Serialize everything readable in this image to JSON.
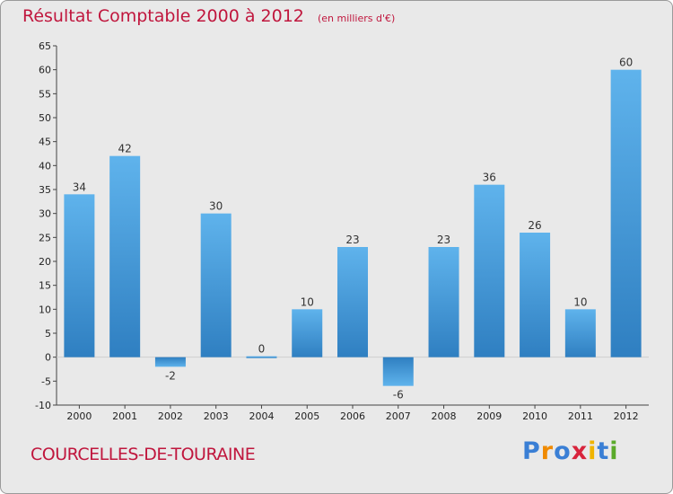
{
  "header": {
    "title": "Résultat Comptable 2000 à 2012",
    "subtitle": "(en milliers d'€)"
  },
  "footer": {
    "place": "COURCELLES-DE-TOURAINE",
    "logo_letters": [
      {
        "ch": "P",
        "color": "#3a7fd5"
      },
      {
        "ch": "r",
        "color": "#f08a00"
      },
      {
        "ch": "o",
        "color": "#3a7fd5"
      },
      {
        "ch": "x",
        "color": "#d8243c"
      },
      {
        "ch": "i",
        "color": "#f0b400"
      },
      {
        "ch": "t",
        "color": "#3a7fd5"
      },
      {
        "ch": "i",
        "color": "#5aaa2a"
      }
    ]
  },
  "chart_data": {
    "type": "bar",
    "title": "Résultat Comptable 2000 à 2012",
    "subtitle": "(en milliers d'€)",
    "categories": [
      "2000",
      "2001",
      "2002",
      "2003",
      "2004",
      "2005",
      "2006",
      "2007",
      "2008",
      "2009",
      "2010",
      "2011",
      "2012"
    ],
    "values": [
      34,
      42,
      -2,
      30,
      0,
      10,
      23,
      -6,
      23,
      36,
      26,
      10,
      60
    ],
    "ylim": [
      -10,
      65
    ],
    "yticks": [
      -10,
      -5,
      0,
      5,
      10,
      15,
      20,
      25,
      30,
      35,
      40,
      45,
      50,
      55,
      60,
      65
    ],
    "grid": false,
    "bar_color": "#4a9ee0"
  }
}
